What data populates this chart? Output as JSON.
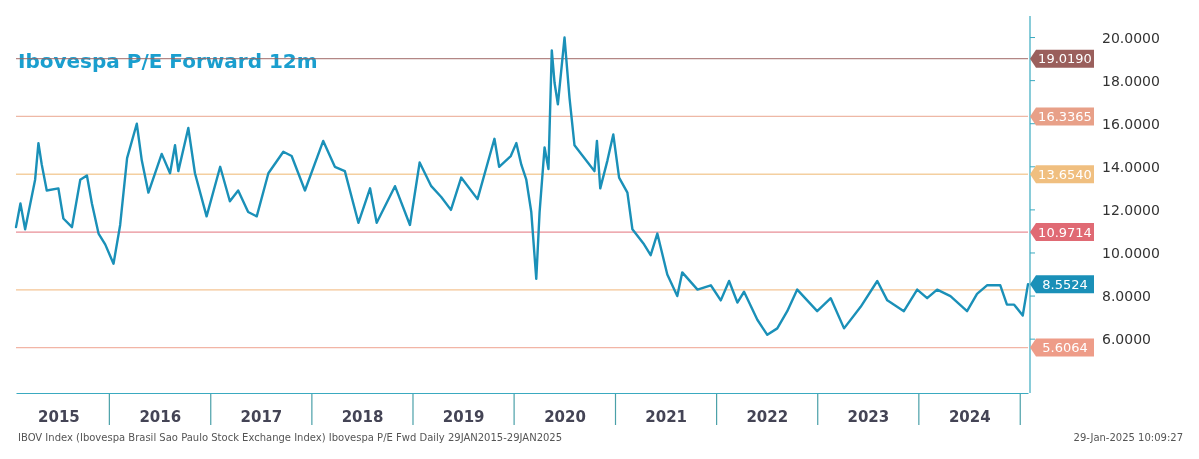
{
  "chart_data": {
    "type": "line",
    "title": "Ibovespa P/E Forward 12m",
    "x": [
      "2015-01-29",
      "2015-02-14",
      "2015-03-03",
      "2015-04-08",
      "2015-04-20",
      "2015-05-02",
      "2015-05-20",
      "2015-07-01",
      "2015-07-19",
      "2015-08-19",
      "2015-09-18",
      "2015-10-12",
      "2015-10-30",
      "2015-11-23",
      "2015-12-17",
      "2016-01-16",
      "2016-02-09",
      "2016-03-05",
      "2016-04-09",
      "2016-04-27",
      "2016-05-21",
      "2016-07-08",
      "2016-08-07",
      "2016-08-25",
      "2016-09-06",
      "2016-10-12",
      "2016-11-05",
      "2016-12-17",
      "2017-02-04",
      "2017-03-11",
      "2017-04-10",
      "2017-05-16",
      "2017-06-16",
      "2017-07-28",
      "2017-09-20",
      "2017-10-20",
      "2017-12-07",
      "2018-02-11",
      "2018-03-25",
      "2018-04-30",
      "2018-06-18",
      "2018-07-30",
      "2018-08-23",
      "2018-10-28",
      "2018-12-21",
      "2019-01-25",
      "2019-03-08",
      "2019-04-13",
      "2019-05-18",
      "2019-06-24",
      "2019-08-22",
      "2019-10-22",
      "2019-11-08",
      "2019-12-20",
      "2020-01-09",
      "2020-01-27",
      "2020-02-14",
      "2020-03-03",
      "2020-03-21",
      "2020-04-02",
      "2020-04-20",
      "2020-05-04",
      "2020-05-16",
      "2020-05-26",
      "2020-06-07",
      "2020-07-01",
      "2020-07-19",
      "2020-08-06",
      "2020-08-24",
      "2020-09-23",
      "2020-10-17",
      "2020-10-26",
      "2020-11-07",
      "2020-12-03",
      "2020-12-24",
      "2021-01-14",
      "2021-02-13",
      "2021-03-03",
      "2021-04-14",
      "2021-05-08",
      "2021-06-01",
      "2021-07-07",
      "2021-08-12",
      "2021-08-30",
      "2021-10-24",
      "2021-12-11",
      "2022-01-16",
      "2022-02-15",
      "2022-03-17",
      "2022-04-10",
      "2022-05-28",
      "2022-07-03",
      "2022-08-08",
      "2022-09-13",
      "2022-10-19",
      "2022-11-24",
      "2022-12-30",
      "2023-02-17",
      "2023-04-06",
      "2023-06-05",
      "2023-08-04",
      "2023-09-09",
      "2023-11-08",
      "2023-12-26",
      "2024-01-31",
      "2024-03-07",
      "2024-04-24",
      "2024-06-23",
      "2024-07-29",
      "2024-09-03",
      "2024-10-21",
      "2024-11-14",
      "2024-12-10",
      "2025-01-10",
      "2025-01-29"
    ],
    "series": [
      {
        "color": "#1a90b8",
        "values": [
          11.2,
          12.3,
          11.1,
          13.4,
          15.1,
          14.1,
          12.9,
          13.0,
          11.6,
          11.2,
          13.4,
          13.6,
          12.3,
          10.9,
          10.4,
          9.5,
          11.3,
          14.4,
          16.0,
          14.3,
          12.8,
          14.6,
          13.7,
          15.0,
          13.8,
          15.8,
          13.7,
          11.7,
          14.0,
          12.4,
          12.9,
          11.9,
          11.7,
          13.7,
          14.7,
          14.5,
          12.9,
          15.2,
          14.0,
          13.8,
          11.4,
          13.0,
          11.4,
          13.1,
          11.3,
          14.2,
          13.1,
          12.6,
          12.0,
          13.5,
          12.5,
          15.3,
          14.0,
          14.5,
          15.1,
          14.1,
          13.4,
          11.9,
          8.8,
          11.9,
          14.9,
          13.9,
          19.4,
          17.9,
          16.9,
          20.0,
          17.2,
          15.0,
          14.7,
          14.2,
          13.8,
          15.2,
          13.0,
          14.3,
          15.5,
          13.5,
          12.8,
          11.1,
          10.4,
          9.9,
          10.9,
          9.0,
          8.0,
          9.1,
          8.3,
          8.5,
          7.8,
          8.7,
          7.7,
          8.2,
          6.9,
          6.2,
          6.5,
          7.3,
          8.3,
          7.8,
          7.3,
          7.9,
          6.5,
          7.5,
          8.7,
          7.8,
          7.3,
          8.3,
          7.9,
          8.3,
          8.0,
          7.3,
          8.1,
          8.5,
          8.5,
          7.6,
          7.6,
          7.1,
          8.5524
        ]
      }
    ],
    "xlim": [
      "2015-01-29",
      "2025-01-29"
    ],
    "xticks": [
      {
        "value": "2015-07-01",
        "label": "2015"
      },
      {
        "value": "2016-07-01",
        "label": "2016"
      },
      {
        "value": "2017-07-01",
        "label": "2017"
      },
      {
        "value": "2018-07-01",
        "label": "2018"
      },
      {
        "value": "2019-07-01",
        "label": "2019"
      },
      {
        "value": "2020-07-01",
        "label": "2020"
      },
      {
        "value": "2021-07-01",
        "label": "2021"
      },
      {
        "value": "2022-07-01",
        "label": "2022"
      },
      {
        "value": "2023-07-01",
        "label": "2023"
      },
      {
        "value": "2024-07-01",
        "label": "2024"
      }
    ],
    "ylim": [
      3.5,
      21
    ],
    "yticks": [
      {
        "value": 6,
        "label": "6.0000"
      },
      {
        "value": 8,
        "label": "8.0000"
      },
      {
        "value": 10,
        "label": "10.0000"
      },
      {
        "value": 12,
        "label": "12.0000"
      },
      {
        "value": 14,
        "label": "14.0000"
      },
      {
        "value": 16,
        "label": "16.0000"
      },
      {
        "value": 18,
        "label": "18.0000"
      },
      {
        "value": 20,
        "label": "20.0000"
      }
    ],
    "ref_lines": [
      {
        "axis": "y",
        "value": 19.019,
        "label": "19.0190",
        "color": "#9a5f5c"
      },
      {
        "axis": "y",
        "value": 16.3365,
        "label": "16.3365",
        "color": "#e8a088"
      },
      {
        "axis": "y",
        "value": 13.654,
        "label": "13.6540",
        "color": "#f0bf80"
      },
      {
        "axis": "y",
        "value": 10.9714,
        "label": "10.9714",
        "color": "#e06a74"
      },
      {
        "axis": "y",
        "value": 8.2889,
        "color": "#f0b070"
      },
      {
        "axis": "y",
        "value": 5.6064,
        "label": "5.6064",
        "color": "#ee9c88"
      }
    ],
    "grid": false,
    "annotations": [
      {
        "text": "8.5524",
        "x": "2025-01-29",
        "y": 8.5524
      },
      "IBOV Index (Ibovespa Brasil Sao Paulo Stock Exchange Index) Ibovespa P/E Fwd  Daily 29JAN2015-29JAN2025",
      "29-Jan-2025 10:09:27"
    ]
  }
}
